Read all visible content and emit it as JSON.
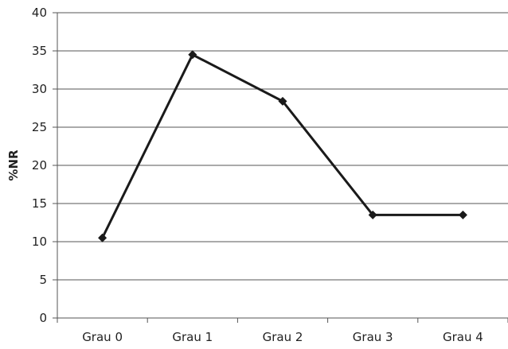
{
  "chart_data": {
    "type": "line",
    "title": "",
    "xlabel": "",
    "ylabel": "%NR",
    "categories": [
      "Grau 0",
      "Grau 1",
      "Grau 2",
      "Grau 3",
      "Grau 4"
    ],
    "series": [
      {
        "values": [
          10.5,
          34.5,
          28.4,
          13.5,
          13.5
        ]
      }
    ],
    "ylim": [
      0,
      40
    ],
    "yticks": [
      0,
      5,
      10,
      15,
      20,
      25,
      30,
      35,
      40
    ],
    "grid": true,
    "legend": "none",
    "colors": {
      "line": "#1a1a1a",
      "grid": "#555555",
      "text": "#222222"
    }
  }
}
